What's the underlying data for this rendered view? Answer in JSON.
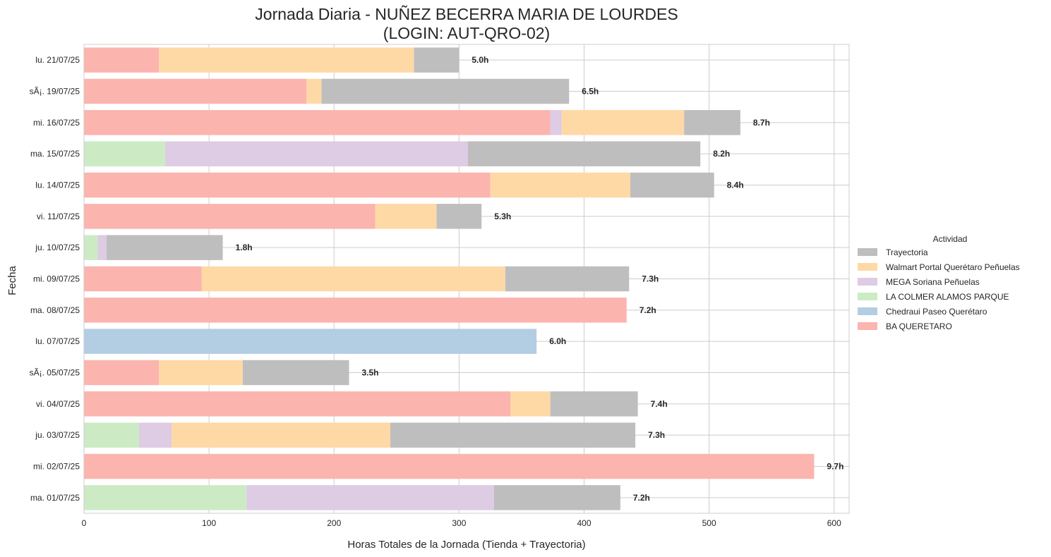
{
  "chart_data": {
    "type": "bar",
    "orientation": "horizontal",
    "stacked": true,
    "title_line1": "Jornada Diaria - NUÑEZ BECERRA MARIA DE LOURDES",
    "title_line2": "(LOGIN: AUT-QRO-02)",
    "xlabel": "Horas Totales de la Jornada (Tienda + Trayectoria)",
    "ylabel": "Fecha",
    "xlim": [
      0,
      612
    ],
    "xticks": [
      0,
      100,
      200,
      300,
      400,
      500,
      600
    ],
    "grid": true,
    "legend_title": "Actividad",
    "legend_position": "right",
    "categories": [
      "lu. 21/07/25",
      "sÃ¡. 19/07/25",
      "mi. 16/07/25",
      "ma. 15/07/25",
      "lu. 14/07/25",
      "vi. 11/07/25",
      "ju. 10/07/25",
      "mi. 09/07/25",
      "ma. 08/07/25",
      "lu. 07/07/25",
      "sÃ¡. 05/07/25",
      "vi. 04/07/25",
      "ju. 03/07/25",
      "mi. 02/07/25",
      "ma. 01/07/25"
    ],
    "totals_labels": [
      "5.0h",
      "6.5h",
      "8.7h",
      "8.2h",
      "8.4h",
      "5.3h",
      "1.8h",
      "7.3h",
      "7.2h",
      "6.0h",
      "3.5h",
      "7.4h",
      "7.3h",
      "9.7h",
      "7.2h"
    ],
    "series": [
      {
        "name": "BA QUERETARO",
        "color": "#fbb4ae",
        "values": [
          60,
          178,
          373,
          0,
          325,
          233,
          0,
          94,
          434,
          0,
          60,
          341,
          0,
          584,
          0
        ]
      },
      {
        "name": "Chedraui Paseo Querétaro",
        "color": "#b3cde3",
        "values": [
          0,
          0,
          0,
          0,
          0,
          0,
          0,
          0,
          0,
          362,
          0,
          0,
          0,
          0,
          0
        ]
      },
      {
        "name": "LA COLMER ALAMOS PARQUE",
        "color": "#ccebc5",
        "values": [
          0,
          0,
          0,
          65,
          0,
          0,
          11,
          0,
          0,
          0,
          0,
          0,
          44,
          0,
          130
        ]
      },
      {
        "name": "MEGA Soriana Peñuelas",
        "color": "#decbe4",
        "values": [
          0,
          0,
          9,
          242,
          0,
          0,
          7,
          0,
          0,
          0,
          0,
          0,
          26,
          0,
          198
        ]
      },
      {
        "name": "Walmart Portal Querétaro Peñuelas",
        "color": "#fed9a6",
        "values": [
          204,
          12,
          98,
          0,
          112,
          49,
          0,
          243,
          0,
          0,
          67,
          32,
          175,
          0,
          0
        ]
      },
      {
        "name": "Trayectoria",
        "color": "#bebebe",
        "values": [
          36,
          198,
          45,
          186,
          67,
          36,
          93,
          99,
          0,
          0,
          85,
          70,
          196,
          0,
          101
        ]
      }
    ],
    "legend_order": [
      "Trayectoria",
      "Walmart Portal Querétaro Peñuelas",
      "MEGA Soriana Peñuelas",
      "LA COLMER ALAMOS PARQUE",
      "Chedraui Paseo Querétaro",
      "BA QUERETARO"
    ]
  }
}
